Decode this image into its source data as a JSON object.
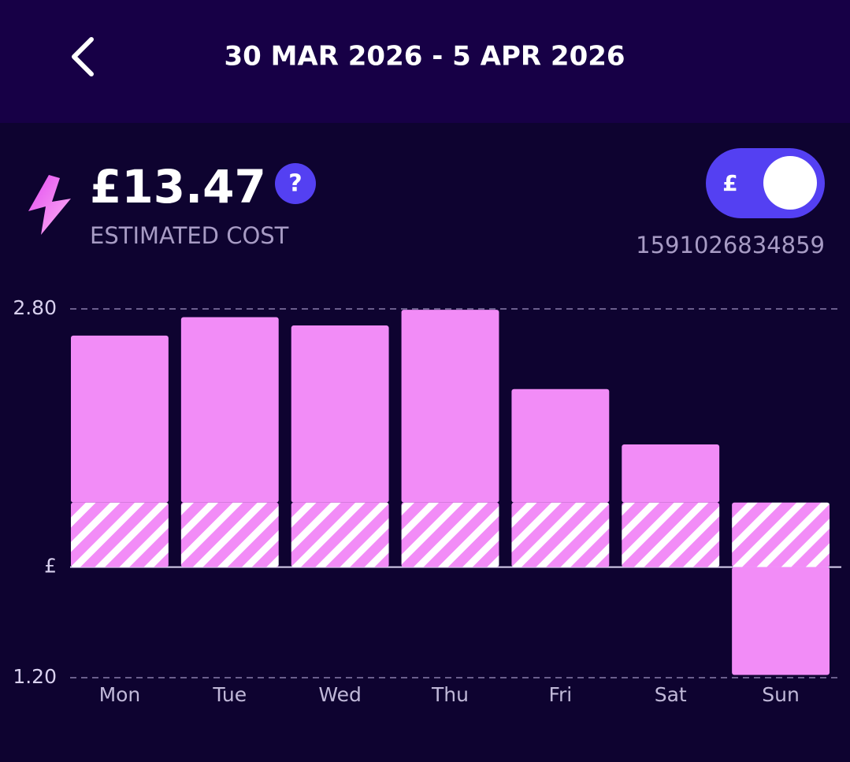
{
  "header": {
    "title": "30 MAR 2026 - 5 APR 2026"
  },
  "summary": {
    "amount": "£13.47",
    "label": "ESTIMATED COST",
    "help": "?"
  },
  "toggle": {
    "label": "£"
  },
  "meter": "1591026834859",
  "chart_data": {
    "type": "bar",
    "stacked": true,
    "categories": [
      "Mon",
      "Tue",
      "Wed",
      "Thu",
      "Fri",
      "Sat",
      "Sun"
    ],
    "series": [
      {
        "color": "#f28cf7",
        "pattern": "hatch",
        "values": [
          0.7,
          0.7,
          0.7,
          0.7,
          0.7,
          0.7,
          0.7
        ]
      },
      {
        "color": "#f28cf7",
        "values": [
          1.81,
          2.01,
          1.92,
          2.09,
          1.23,
          0.63,
          -1.17
        ]
      }
    ],
    "ylim": [
      -1.2,
      2.8
    ],
    "yticks": [
      {
        "value": -1.2,
        "label": "1.20"
      },
      {
        "value": 0,
        "label": "£"
      },
      {
        "value": 2.8,
        "label": "2.80"
      }
    ],
    "grid": true
  }
}
